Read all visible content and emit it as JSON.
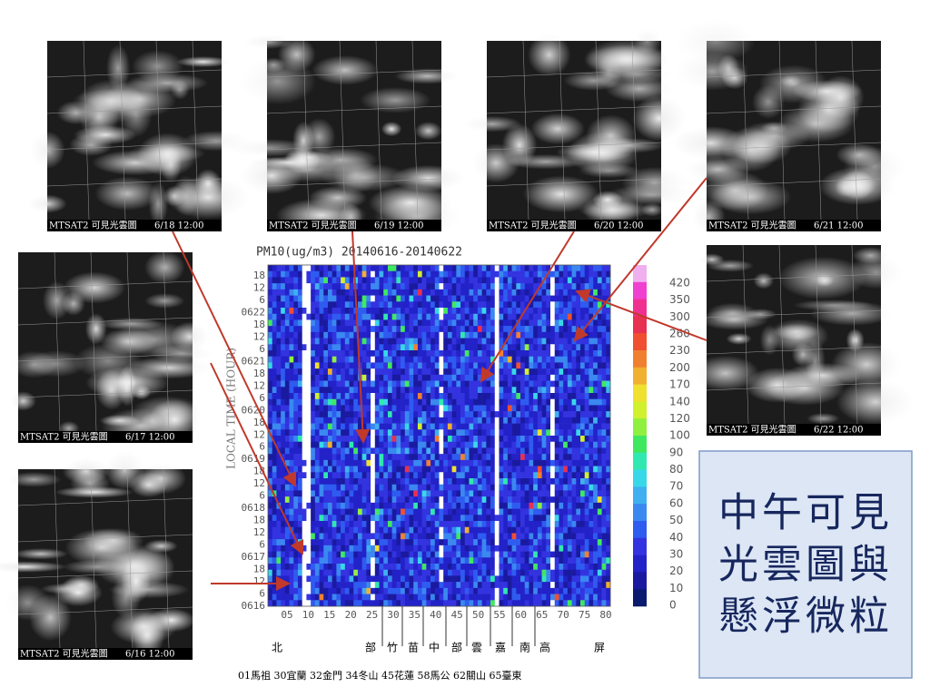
{
  "satellite_images": [
    {
      "caption": "MTSAT2 可見光雲圖",
      "date": "6/18 12:00"
    },
    {
      "caption": "MTSAT2 可見光雲圖",
      "date": "6/19 12:00"
    },
    {
      "caption": "MTSAT2 可見光雲圖",
      "date": "6/20 12:00"
    },
    {
      "caption": "MTSAT2 可見光雲圖",
      "date": "6/21 12:00"
    },
    {
      "caption": "MTSAT2 可見光雲圖",
      "date": "6/17 12:00"
    },
    {
      "caption": "MTSAT2 可見光雲圖",
      "date": "6/16 12:00"
    },
    {
      "caption": "MTSAT2 可見光雲圖",
      "date": "6/22 12:00"
    }
  ],
  "chart": {
    "title": "PM10(ug/m3) 20140616-20140622",
    "y_axis_label": "LOCAL TIME (HOUR)",
    "y_labels": [
      "18",
      "12",
      "6",
      "0622",
      "18",
      "12",
      "6",
      "0621",
      "18",
      "12",
      "6",
      "0620",
      "18",
      "12",
      "6",
      "0619",
      "18",
      "12",
      "6",
      "0618",
      "18",
      "12",
      "6",
      "0617",
      "18",
      "12",
      "6",
      "0616"
    ],
    "x_labels": [
      "05",
      "10",
      "15",
      "20",
      "25",
      "30",
      "35",
      "40",
      "45",
      "50",
      "55",
      "60",
      "65",
      "70",
      "75",
      "80"
    ],
    "colorbar_labels": [
      "420",
      "350",
      "300",
      "260",
      "230",
      "200",
      "170",
      "140",
      "120",
      "100",
      "90",
      "80",
      "70",
      "60",
      "50",
      "40",
      "30",
      "20",
      "10",
      "0"
    ],
    "regions": [
      "北",
      "部",
      "竹",
      "苗",
      "中",
      "部",
      "雲",
      "嘉",
      "南",
      "高",
      "屏"
    ],
    "stations": "01馬祖  30宜蘭  32金門  34冬山  45花蓮  58馬公  62關山  65臺東"
  },
  "text_box": [
    "中午可見",
    "光雲圖與",
    "懸浮微粒"
  ]
}
